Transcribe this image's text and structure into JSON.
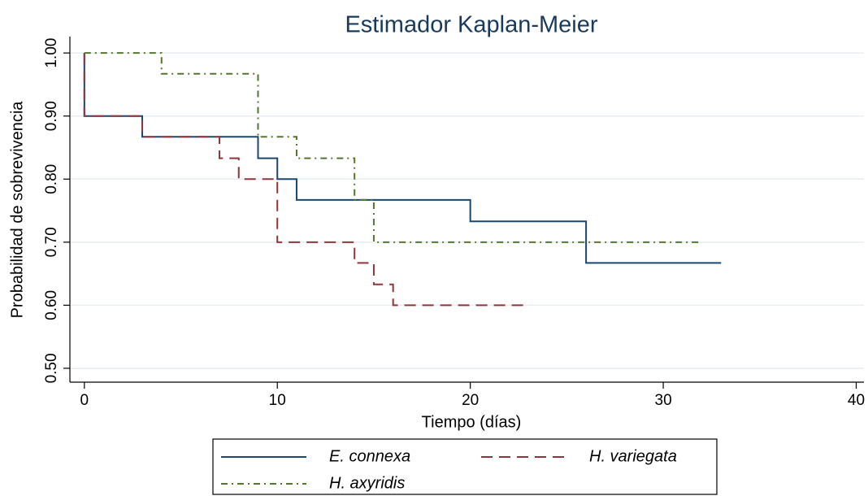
{
  "chart_data": {
    "type": "step",
    "title": "Estimador Kaplan-Meier",
    "x_label": "Tiempo (días)",
    "y_label": "Probabilidad de sobrevivencia",
    "xlim": [
      -0.75,
      40.4
    ],
    "ylim": [
      0.478,
      1.026
    ],
    "xticks": [
      0,
      10,
      20,
      30,
      40
    ],
    "yticks": [
      {
        "value": 0.5,
        "label": "0.50"
      },
      {
        "value": 0.6,
        "label": "0.60"
      },
      {
        "value": 0.7,
        "label": "0.70"
      },
      {
        "value": 0.8,
        "label": "0.80"
      },
      {
        "value": 0.9,
        "label": "0.90"
      },
      {
        "value": 1.0,
        "label": "1.00"
      }
    ],
    "grid": true,
    "legend": "bottom",
    "series": [
      {
        "name": "E. connexa",
        "color": "#1a476f",
        "line_style": "solid",
        "x": [
          0,
          0,
          3,
          3,
          9,
          9,
          10,
          10,
          11,
          11,
          20,
          20,
          26,
          26,
          33
        ],
        "values": [
          1,
          0.9,
          0.9,
          0.867,
          0.867,
          0.833,
          0.833,
          0.8,
          0.8,
          0.767,
          0.767,
          0.733,
          0.733,
          0.667,
          0.667
        ]
      },
      {
        "name": "H. variegata",
        "color": "#90353b",
        "line_style": "dashed",
        "x": [
          0,
          0,
          3,
          3,
          7,
          7,
          8,
          8,
          10,
          10,
          14,
          14,
          15,
          15,
          16,
          16,
          22.8
        ],
        "values": [
          1,
          0.9,
          0.9,
          0.867,
          0.867,
          0.833,
          0.833,
          0.8,
          0.8,
          0.7,
          0.7,
          0.667,
          0.667,
          0.633,
          0.633,
          0.6,
          0.6
        ]
      },
      {
        "name": "H. axyridis",
        "color": "#55752f",
        "line_style": "dashdot",
        "x": [
          0,
          4,
          4,
          9,
          9,
          11,
          11,
          14,
          14,
          15,
          15,
          32
        ],
        "values": [
          1,
          1,
          0.967,
          0.967,
          0.867,
          0.867,
          0.833,
          0.833,
          0.767,
          0.767,
          0.7,
          0.7
        ]
      }
    ]
  }
}
